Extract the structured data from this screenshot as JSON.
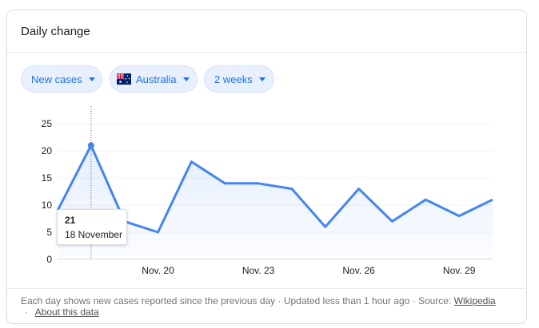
{
  "card": {
    "title": "Daily change"
  },
  "filters": {
    "metric": "New cases",
    "country": "Australia",
    "range": "2 weeks"
  },
  "tooltip": {
    "value": "21",
    "date": "18 November"
  },
  "footer": {
    "text": "Each day shows new cases reported since the previous day · Updated less than 1 hour ago ·  Source:",
    "source_link": "Wikipedia",
    "about_link": "About this data"
  },
  "colors": {
    "accent": "#1a73e8",
    "line": "#4285f4",
    "chip_bg": "#e8f0fe"
  },
  "chart_data": {
    "type": "line",
    "x": [
      "Nov. 17",
      "Nov. 18",
      "Nov. 19",
      "Nov. 20",
      "Nov. 21",
      "Nov. 22",
      "Nov. 23",
      "Nov. 24",
      "Nov. 25",
      "Nov. 26",
      "Nov. 27",
      "Nov. 28",
      "Nov. 29",
      "Nov. 30"
    ],
    "values": [
      9,
      21,
      7,
      5,
      18,
      14,
      14,
      13,
      6,
      13,
      7,
      11,
      8,
      11
    ],
    "xticks": [
      "Nov. 20",
      "Nov. 23",
      "Nov. 26",
      "Nov. 29"
    ],
    "yticks": [
      "0",
      "5",
      "10",
      "15",
      "20",
      "25"
    ],
    "ylim": [
      0,
      25
    ],
    "highlight_index": 1,
    "grid": true
  }
}
